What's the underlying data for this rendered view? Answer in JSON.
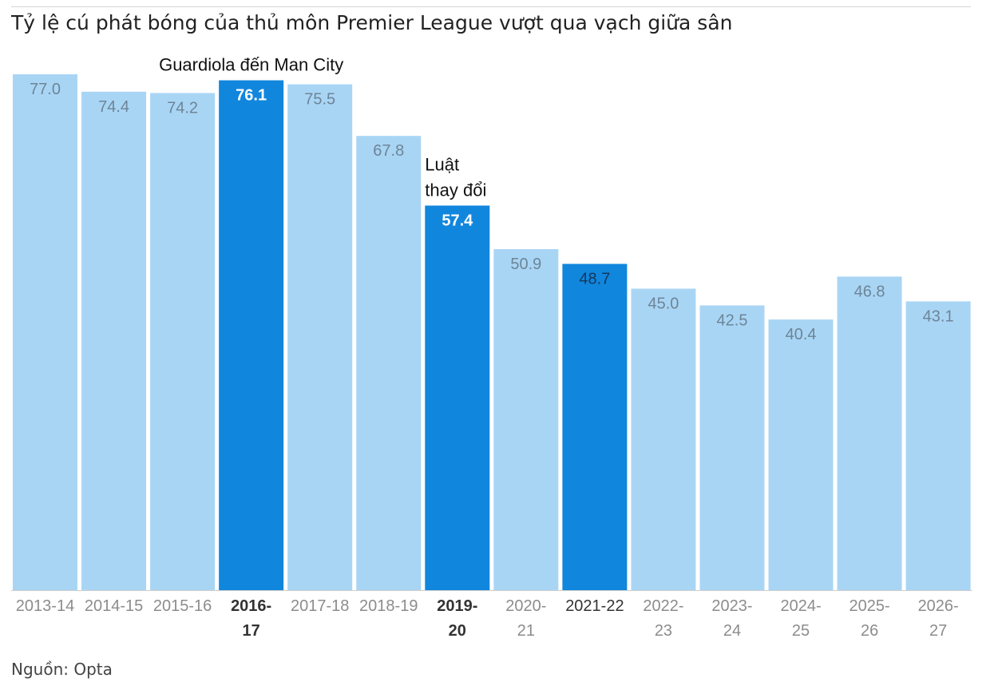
{
  "title": "Tỷ lệ cú phát bóng của thủ môn Premier League vượt qua vạch giữa sân",
  "source": "Nguồn: Opta",
  "colors": {
    "bar": "#a9d5f5",
    "highlight": "#1186dd",
    "value_text": "#6d8597",
    "value_text_highlight": "#ffffff",
    "tick_text": "#8c8c8c",
    "tick_text_highlight": "#333333",
    "annotation_text": "#111111",
    "axis": "#cfcfcf"
  },
  "chart_data": {
    "type": "bar",
    "categories": [
      "2013-14",
      "2014-15",
      "2015-16",
      "2016-17",
      "2017-18",
      "2018-19",
      "2019-20",
      "2020-21",
      "2021-22",
      "2022-23",
      "2023-24",
      "2024-25",
      "2025-26",
      "2026-27"
    ],
    "tick_lines": [
      [
        "2013-14"
      ],
      [
        "2014-15"
      ],
      [
        "2015-16"
      ],
      [
        "2016-",
        "17"
      ],
      [
        "2017-18"
      ],
      [
        "2018-19"
      ],
      [
        "2019-",
        "20"
      ],
      [
        "2020-",
        "21"
      ],
      [
        "2021-22"
      ],
      [
        "2022-",
        "23"
      ],
      [
        "2023-",
        "24"
      ],
      [
        "2024-",
        "25"
      ],
      [
        "2025-",
        "26"
      ],
      [
        "2026-",
        "27"
      ]
    ],
    "values": [
      77.0,
      74.4,
      74.2,
      76.1,
      75.5,
      67.8,
      57.4,
      50.9,
      48.7,
      45.0,
      42.5,
      40.4,
      46.8,
      43.1
    ],
    "value_labels": [
      "77.0",
      "74.4",
      "74.2",
      "76.1",
      "75.5",
      "67.8",
      "57.4",
      "50.9",
      "48.7",
      "45.0",
      "42.5",
      "40.4",
      "46.8",
      "43.1"
    ],
    "highlighted": [
      "2016-17",
      "2019-20",
      "2021-22"
    ],
    "bold_value_labels": [
      "2016-17",
      "2019-20"
    ],
    "annotations": [
      {
        "category": "2016-17",
        "lines": [
          "Guardiola đến Man City"
        ]
      },
      {
        "category": "2019-20",
        "lines": [
          "Luật",
          "thay đổi"
        ]
      }
    ],
    "xlabel": "",
    "ylabel": "",
    "ylim": [
      0,
      80
    ],
    "grid": false,
    "legend": "none"
  }
}
